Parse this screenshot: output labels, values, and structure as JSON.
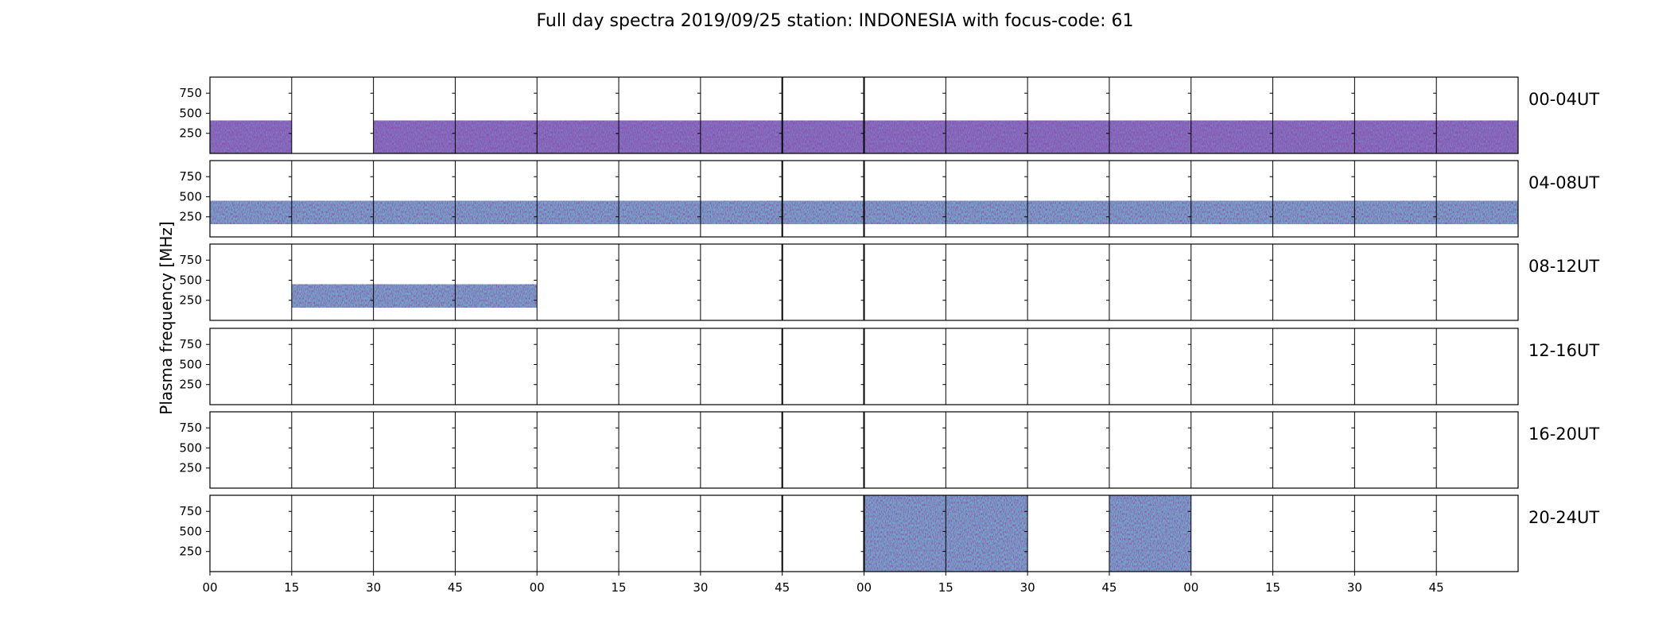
{
  "chart_data": {
    "type": "heatmap",
    "title": "Full day spectra 2019/09/25 station: INDONESIA with focus-code: 61",
    "ylabel": "Plasma frequency [MHz]",
    "xlabel": "",
    "colormap": "viridis",
    "ylim": [
      0,
      950
    ],
    "yticks": [
      250,
      500,
      750
    ],
    "x_ticks": [
      "00",
      "15",
      "30",
      "45",
      "00",
      "15",
      "30",
      "45",
      "00",
      "15",
      "30",
      "45",
      "00",
      "15",
      "30",
      "45"
    ],
    "segments_per_row": 16,
    "segment_minutes": 15,
    "rows": [
      {
        "label": "00-04UT",
        "coverage": [
          {
            "from": 0,
            "to": 1,
            "freq_min": 0,
            "freq_max": 410
          },
          {
            "from": 2,
            "to": 16,
            "freq_min": 0,
            "freq_max": 410
          }
        ]
      },
      {
        "label": "04-08UT",
        "coverage": [
          {
            "from": 0,
            "to": 16,
            "freq_min": 160,
            "freq_max": 450
          }
        ]
      },
      {
        "label": "08-12UT",
        "coverage": [
          {
            "from": 1,
            "to": 4,
            "freq_min": 160,
            "freq_max": 450
          }
        ]
      },
      {
        "label": "12-16UT",
        "coverage": []
      },
      {
        "label": "16-20UT",
        "coverage": []
      },
      {
        "label": "20-24UT",
        "coverage": [
          {
            "from": 8,
            "to": 10,
            "freq_min": 0,
            "freq_max": 950
          },
          {
            "from": 11,
            "to": 12,
            "freq_min": 0,
            "freq_max": 950
          }
        ]
      }
    ],
    "colors": {
      "dark": "#3b0f70",
      "mid": "#31688e",
      "bright": "#21908d",
      "accent": "#35b779"
    },
    "legend": "none",
    "grid": false
  }
}
